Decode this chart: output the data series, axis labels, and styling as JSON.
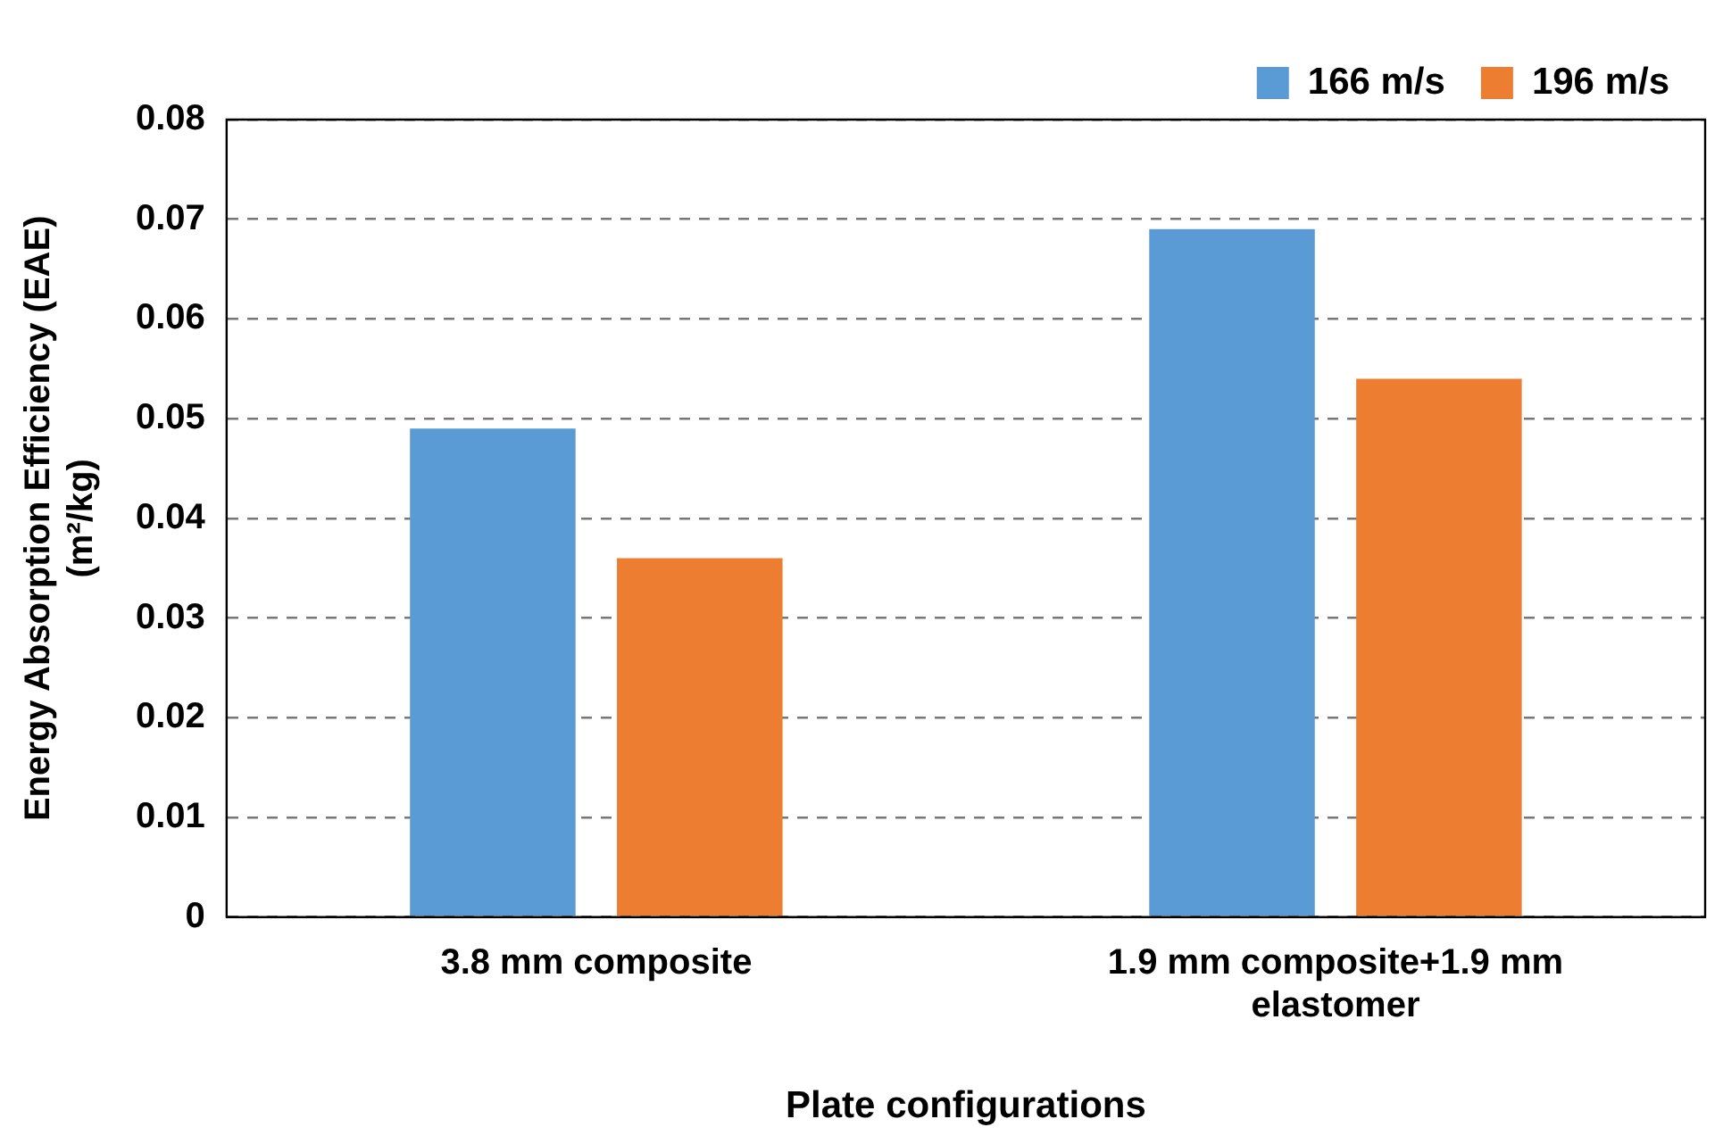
{
  "chart_data": {
    "type": "bar",
    "xlabel": "Plate configurations",
    "ylabel": "Energy Absorption Efficiency (EAE) (m²/kg)",
    "categories": [
      "3.8 mm composite",
      "1.9 mm composite+1.9 mm elastomer"
    ],
    "series": [
      {
        "name": "166 m/s",
        "color": "#5b9bd5",
        "values": [
          0.049,
          0.069
        ]
      },
      {
        "name": "196 m/s",
        "color": "#ed7d31",
        "values": [
          0.036,
          0.054
        ]
      }
    ],
    "ylim": [
      0,
      0.08
    ],
    "yticks": [
      0,
      0.01,
      0.02,
      0.03,
      0.04,
      0.05,
      0.06,
      0.07,
      0.08
    ],
    "grid": "y",
    "legend": "top right"
  }
}
